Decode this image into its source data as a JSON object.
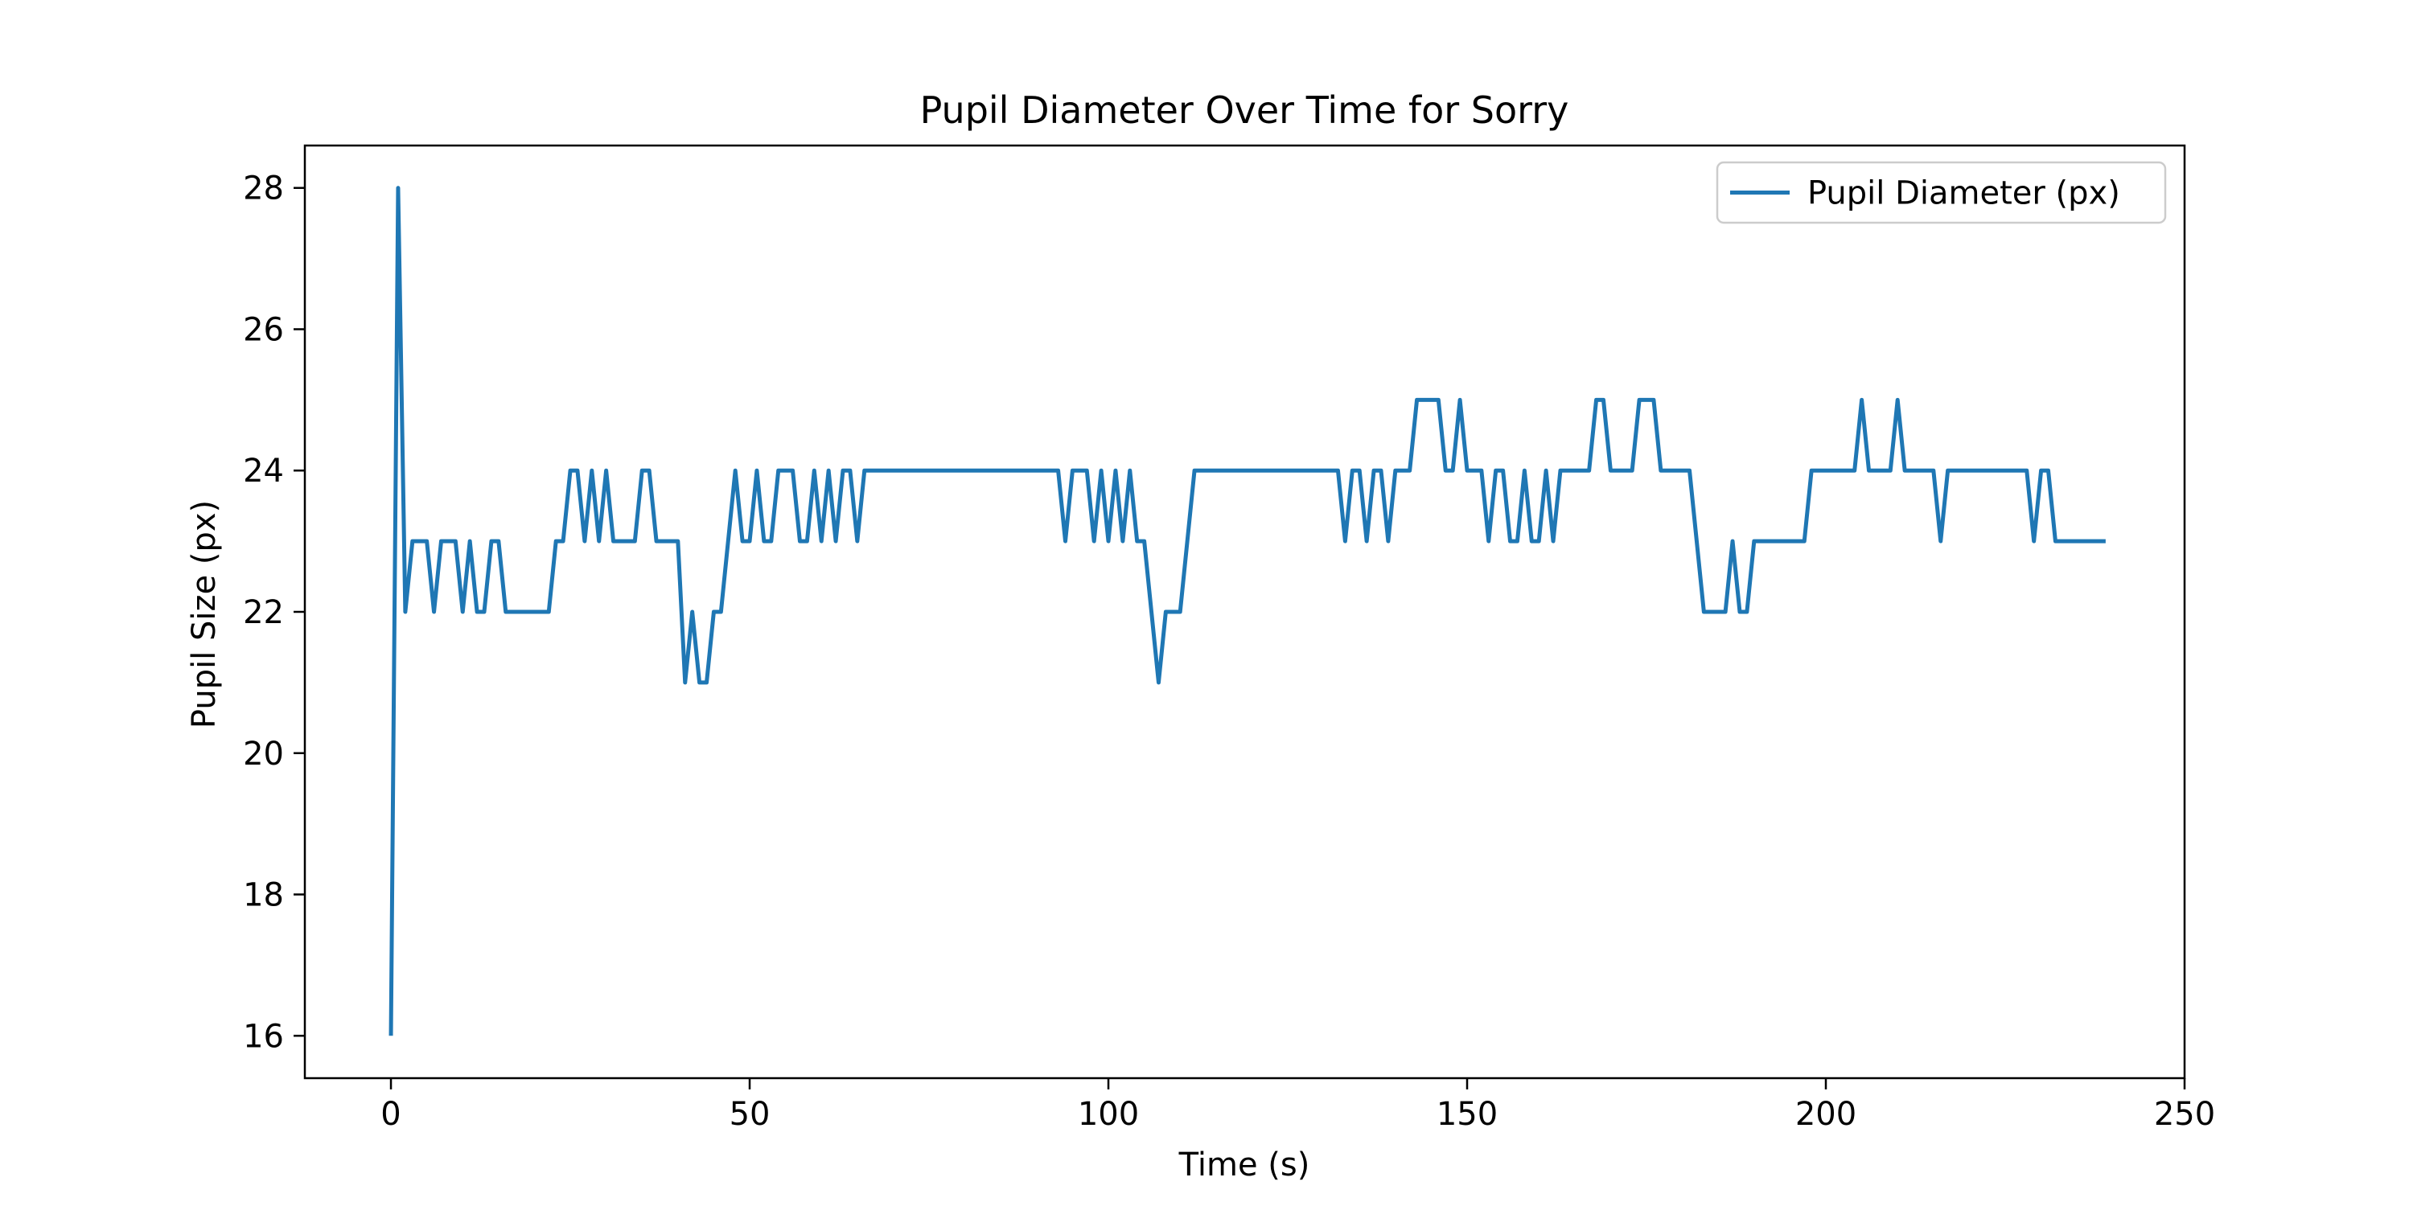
{
  "chart_data": {
    "type": "line",
    "title": "Pupil Diameter Over Time for Sorry",
    "xlabel": "Time (s)",
    "ylabel": "Pupil Size (px)",
    "xlim": [
      -12,
      250
    ],
    "ylim": [
      15.4,
      28.6
    ],
    "xticks": [
      0,
      50,
      100,
      150,
      200,
      250
    ],
    "yticks": [
      16,
      18,
      20,
      22,
      24,
      26,
      28
    ],
    "grid": false,
    "legend_position": "top-right",
    "series": [
      {
        "name": "Pupil Diameter (px)",
        "color": "#1f77b4",
        "x": [
          0,
          1,
          2,
          3,
          4,
          5,
          6,
          7,
          8,
          9,
          10,
          11,
          12,
          13,
          14,
          15,
          16,
          17,
          18,
          19,
          20,
          21,
          22,
          23,
          24,
          25,
          26,
          27,
          28,
          29,
          30,
          31,
          32,
          33,
          34,
          35,
          36,
          37,
          38,
          39,
          40,
          41,
          42,
          43,
          44,
          45,
          46,
          47,
          48,
          49,
          50,
          51,
          52,
          53,
          54,
          55,
          56,
          57,
          58,
          59,
          60,
          61,
          62,
          63,
          64,
          65,
          66,
          67,
          68,
          69,
          70,
          71,
          72,
          73,
          74,
          75,
          76,
          77,
          78,
          79,
          80,
          81,
          82,
          83,
          84,
          85,
          86,
          87,
          88,
          89,
          90,
          91,
          92,
          93,
          94,
          95,
          96,
          97,
          98,
          99,
          100,
          101,
          102,
          103,
          104,
          105,
          106,
          107,
          108,
          109,
          110,
          111,
          112,
          113,
          114,
          115,
          116,
          117,
          118,
          119,
          120,
          121,
          122,
          123,
          124,
          125,
          126,
          127,
          128,
          129,
          130,
          131,
          132,
          133,
          134,
          135,
          136,
          137,
          138,
          139,
          140,
          141,
          142,
          143,
          144,
          145,
          146,
          147,
          148,
          149,
          150,
          151,
          152,
          153,
          154,
          155,
          156,
          157,
          158,
          159,
          160,
          161,
          162,
          163,
          164,
          165,
          166,
          167,
          168,
          169,
          170,
          171,
          172,
          173,
          174,
          175,
          176,
          177,
          178,
          179,
          180,
          181,
          182,
          183,
          184,
          185,
          186,
          187,
          188,
          189,
          190,
          191,
          192,
          193,
          194,
          195,
          196,
          197,
          198,
          199,
          200,
          201,
          202,
          203,
          204,
          205,
          206,
          207,
          208,
          209,
          210,
          211,
          212,
          213,
          214,
          215,
          216,
          217,
          218,
          219,
          220,
          221,
          222,
          223,
          224,
          225,
          226,
          227,
          228,
          229,
          230,
          231,
          232,
          233,
          234,
          235,
          236,
          237,
          238,
          239
        ],
        "y": [
          16,
          28,
          22,
          23,
          23,
          23,
          22,
          23,
          23,
          23,
          22,
          23,
          22,
          22,
          23,
          23,
          22,
          22,
          22,
          22,
          22,
          22,
          22,
          23,
          23,
          24,
          24,
          23,
          24,
          23,
          24,
          23,
          23,
          23,
          23,
          24,
          24,
          23,
          23,
          23,
          23,
          21,
          22,
          21,
          21,
          22,
          22,
          23,
          24,
          23,
          23,
          24,
          23,
          23,
          24,
          24,
          24,
          23,
          23,
          24,
          23,
          24,
          23,
          24,
          24,
          23,
          24,
          24,
          24,
          24,
          24,
          24,
          24,
          24,
          24,
          24,
          24,
          24,
          24,
          24,
          24,
          24,
          24,
          24,
          24,
          24,
          24,
          24,
          24,
          24,
          24,
          24,
          24,
          24,
          23,
          24,
          24,
          24,
          23,
          24,
          23,
          24,
          23,
          24,
          23,
          23,
          22,
          21,
          22,
          22,
          22,
          23,
          24,
          24,
          24,
          24,
          24,
          24,
          24,
          24,
          24,
          24,
          24,
          24,
          24,
          24,
          24,
          24,
          24,
          24,
          24,
          24,
          24,
          23,
          24,
          24,
          23,
          24,
          24,
          23,
          24,
          24,
          24,
          25,
          25,
          25,
          25,
          24,
          24,
          25,
          24,
          24,
          24,
          23,
          24,
          24,
          23,
          23,
          24,
          23,
          23,
          24,
          23,
          24,
          24,
          24,
          24,
          24,
          25,
          25,
          24,
          24,
          24,
          24,
          25,
          25,
          25,
          24,
          24,
          24,
          24,
          24,
          23,
          22,
          22,
          22,
          22,
          23,
          22,
          22,
          23,
          23,
          23,
          23,
          23,
          23,
          23,
          23,
          24,
          24,
          24,
          24,
          24,
          24,
          24,
          25,
          24,
          24,
          24,
          24,
          25,
          24,
          24,
          24,
          24,
          24,
          23,
          24,
          24,
          24,
          24,
          24,
          24,
          24,
          24,
          24,
          24,
          24,
          24,
          23,
          24,
          24,
          23,
          23,
          23,
          23,
          23,
          23,
          23,
          23
        ]
      }
    ]
  }
}
